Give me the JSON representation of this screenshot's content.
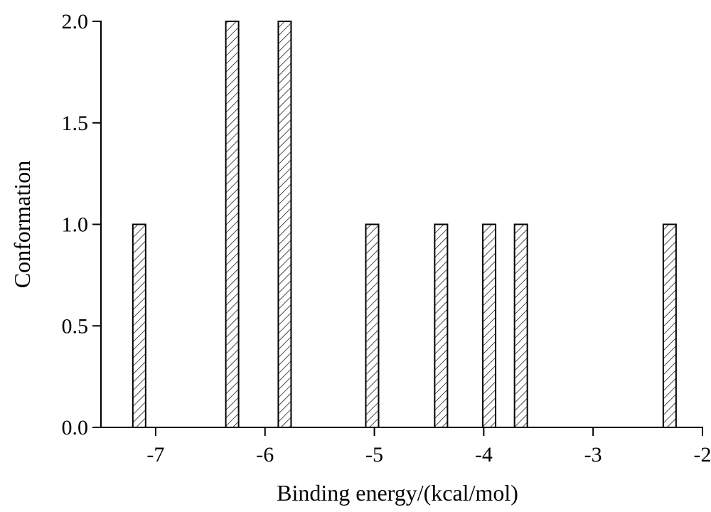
{
  "chart_data": {
    "type": "bar",
    "xlabel": "Binding energy/(kcal/mol)",
    "ylabel": "Conformation",
    "xlim": [
      -7.5,
      -2
    ],
    "ylim": [
      0,
      2
    ],
    "xticks": [
      -7,
      -6,
      -5,
      -4,
      -3,
      -2
    ],
    "xtick_labels": [
      "-7",
      "-6",
      "-5",
      "-4",
      "-3",
      "-2"
    ],
    "yticks": [
      0,
      0.5,
      1,
      1.5,
      2
    ],
    "ytick_labels": [
      "0.0",
      "0.5",
      "1.0",
      "1.5",
      "2.0"
    ],
    "bar_fill": "diagonal-hatch",
    "bar_color": "#000000",
    "grid": false,
    "points": [
      {
        "x": -7.15,
        "y": 1
      },
      {
        "x": -6.3,
        "y": 2
      },
      {
        "x": -5.82,
        "y": 2
      },
      {
        "x": -5.02,
        "y": 1
      },
      {
        "x": -4.39,
        "y": 1
      },
      {
        "x": -3.95,
        "y": 1
      },
      {
        "x": -3.66,
        "y": 1
      },
      {
        "x": -2.3,
        "y": 1
      }
    ]
  }
}
